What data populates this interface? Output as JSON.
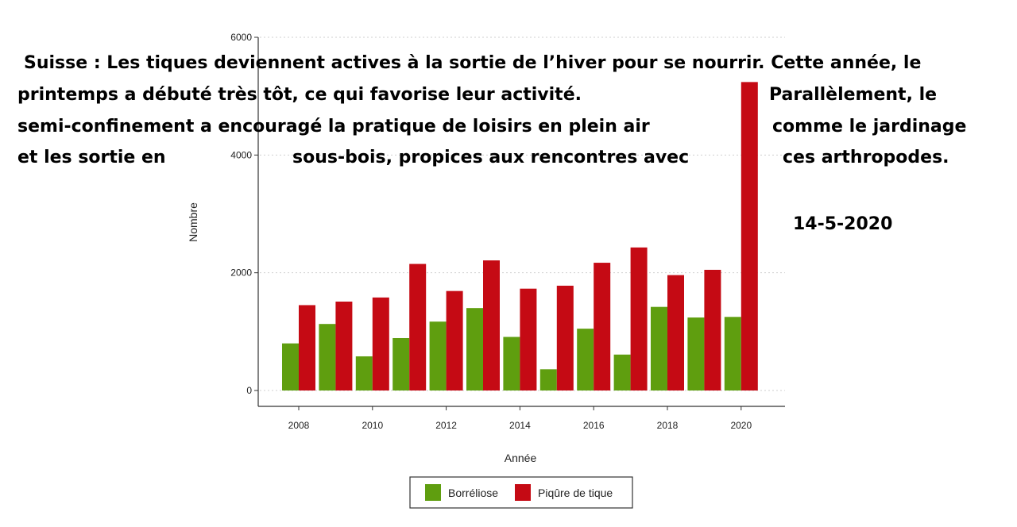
{
  "overlay": {
    "lines": [
      [
        "Suisse : Les tiques deviennent actives à la sortie de l’hiver pour se nourrir. Cette année, le"
      ],
      [
        "printemps a débuté très tôt, ce qui favorise leur activité.",
        "Parallèlement, le"
      ],
      [
        "semi-confinement a encouragé la pratique de loisirs en plein air",
        "comme le jardinage"
      ],
      [
        "et les sortie en",
        "sous-bois, propices aux rencontres avec",
        "ces arthropodes."
      ]
    ],
    "date": "14-5-2020"
  },
  "chart_data": {
    "type": "bar",
    "title": "",
    "xlabel": "Année",
    "ylabel": "Nombre",
    "ylim": [
      0,
      6000
    ],
    "yticks": [
      0,
      2000,
      4000,
      6000
    ],
    "x": [
      2008,
      2009,
      2010,
      2011,
      2012,
      2013,
      2014,
      2015,
      2016,
      2017,
      2018,
      2019,
      2020
    ],
    "xtick_labels": [
      "2008",
      "2010",
      "2012",
      "2014",
      "2016",
      "2018",
      "2020"
    ],
    "grid": true,
    "legend_position": "bottom",
    "series": [
      {
        "name": "Borréliose",
        "color": "#5f9e0f",
        "values": [
          800,
          1130,
          580,
          890,
          1170,
          1400,
          910,
          360,
          1050,
          610,
          1420,
          1240,
          1250
        ]
      },
      {
        "name": "Piqûre de tique",
        "color": "#c50a14",
        "values": [
          1450,
          1510,
          1580,
          2150,
          1690,
          2210,
          1730,
          1780,
          2170,
          2430,
          1960,
          2050,
          5240
        ]
      }
    ]
  }
}
